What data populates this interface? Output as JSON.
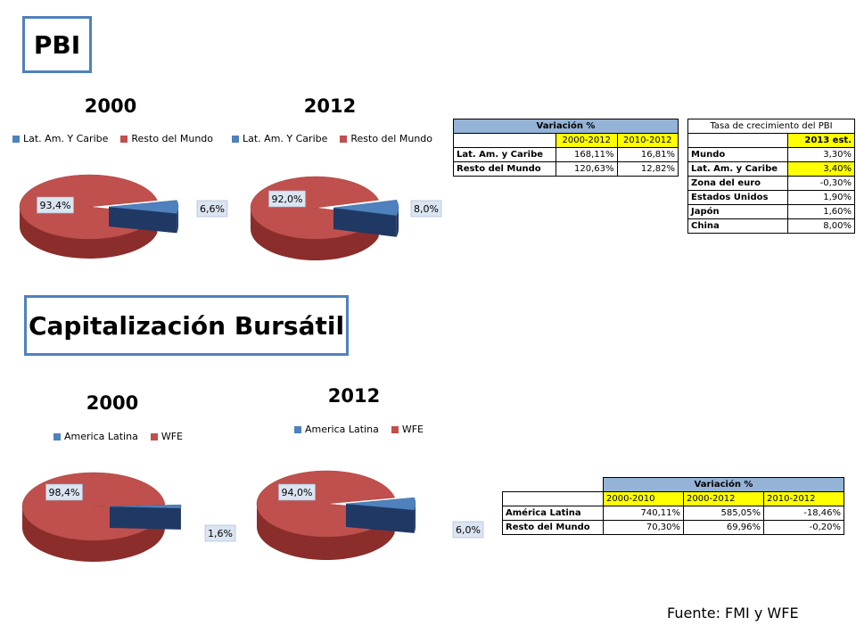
{
  "pbi": {
    "title": "PBI",
    "charts": [
      {
        "year": "2000",
        "legend": [
          "Lat. Am. Y Caribe",
          "Resto del Mundo"
        ],
        "big_label": "93,4%",
        "small_label": "6,6%"
      },
      {
        "year": "2012",
        "legend": [
          "Lat. Am. Y Caribe",
          "Resto del Mundo"
        ],
        "big_label": "92,0%",
        "small_label": "8,0%"
      }
    ],
    "variacion_table": {
      "title": "Variación %",
      "headers": [
        "2000-2012",
        "2010-2012"
      ],
      "rows": [
        {
          "label": "Lat. Am. y Caribe",
          "v1": "168,11%",
          "v2": "16,81%"
        },
        {
          "label": "Resto del Mundo",
          "v1": "120,63%",
          "v2": "12,82%"
        }
      ]
    },
    "crecimiento_table": {
      "title": "Tasa de crecimiento del PBI",
      "header": "2013 est.",
      "rows": [
        {
          "label": "Mundo",
          "value": "3,30%"
        },
        {
          "label": "Lat. Am. y Caribe",
          "value": "3,40%"
        },
        {
          "label": "Zona del euro",
          "value": "-0,30%"
        },
        {
          "label": "Estados Unidos",
          "value": "1,90%"
        },
        {
          "label": "Japón",
          "value": "1,60%"
        },
        {
          "label": "China",
          "value": "8,00%"
        }
      ]
    }
  },
  "cap": {
    "title": "Capitalización Bursátil",
    "charts": [
      {
        "year": "2000",
        "legend": [
          "America Latina",
          "WFE"
        ],
        "big_label": "98,4%",
        "small_label": "1,6%"
      },
      {
        "year": "2012",
        "legend": [
          "America Latina",
          "WFE"
        ],
        "big_label": "94,0%",
        "small_label": "6,0%"
      }
    ],
    "variacion_table": {
      "title": "Variación %",
      "headers": [
        "2000-2010",
        "2000-2012",
        "2010-2012"
      ],
      "rows": [
        {
          "label": "América Latina",
          "v1": "740,11%",
          "v2": "585,05%",
          "v3": "-18,46%"
        },
        {
          "label": "Resto del Mundo",
          "v1": "70,30%",
          "v2": "69,96%",
          "v3": "-0,20%"
        }
      ]
    }
  },
  "footer": "Fuente: FMI y WFE",
  "colors": {
    "blue": "#4f81bd",
    "blue_dark": "#1f3864",
    "red": "#c0504d",
    "red_dark": "#8b2d2b",
    "header_blue": "#95b3d7",
    "highlight": "#ffff00"
  },
  "chart_data": [
    {
      "type": "pie",
      "title": "2000",
      "categories": [
        "Lat. Am. Y Caribe",
        "Resto del Mundo"
      ],
      "values": [
        6.6,
        93.4
      ]
    },
    {
      "type": "pie",
      "title": "2012",
      "categories": [
        "Lat. Am. Y Caribe",
        "Resto del Mundo"
      ],
      "values": [
        8.0,
        92.0
      ]
    },
    {
      "type": "pie",
      "title": "2000",
      "categories": [
        "America Latina",
        "WFE"
      ],
      "values": [
        1.6,
        98.4
      ]
    },
    {
      "type": "pie",
      "title": "2012",
      "categories": [
        "America Latina",
        "WFE"
      ],
      "values": [
        6.0,
        94.0
      ]
    }
  ]
}
